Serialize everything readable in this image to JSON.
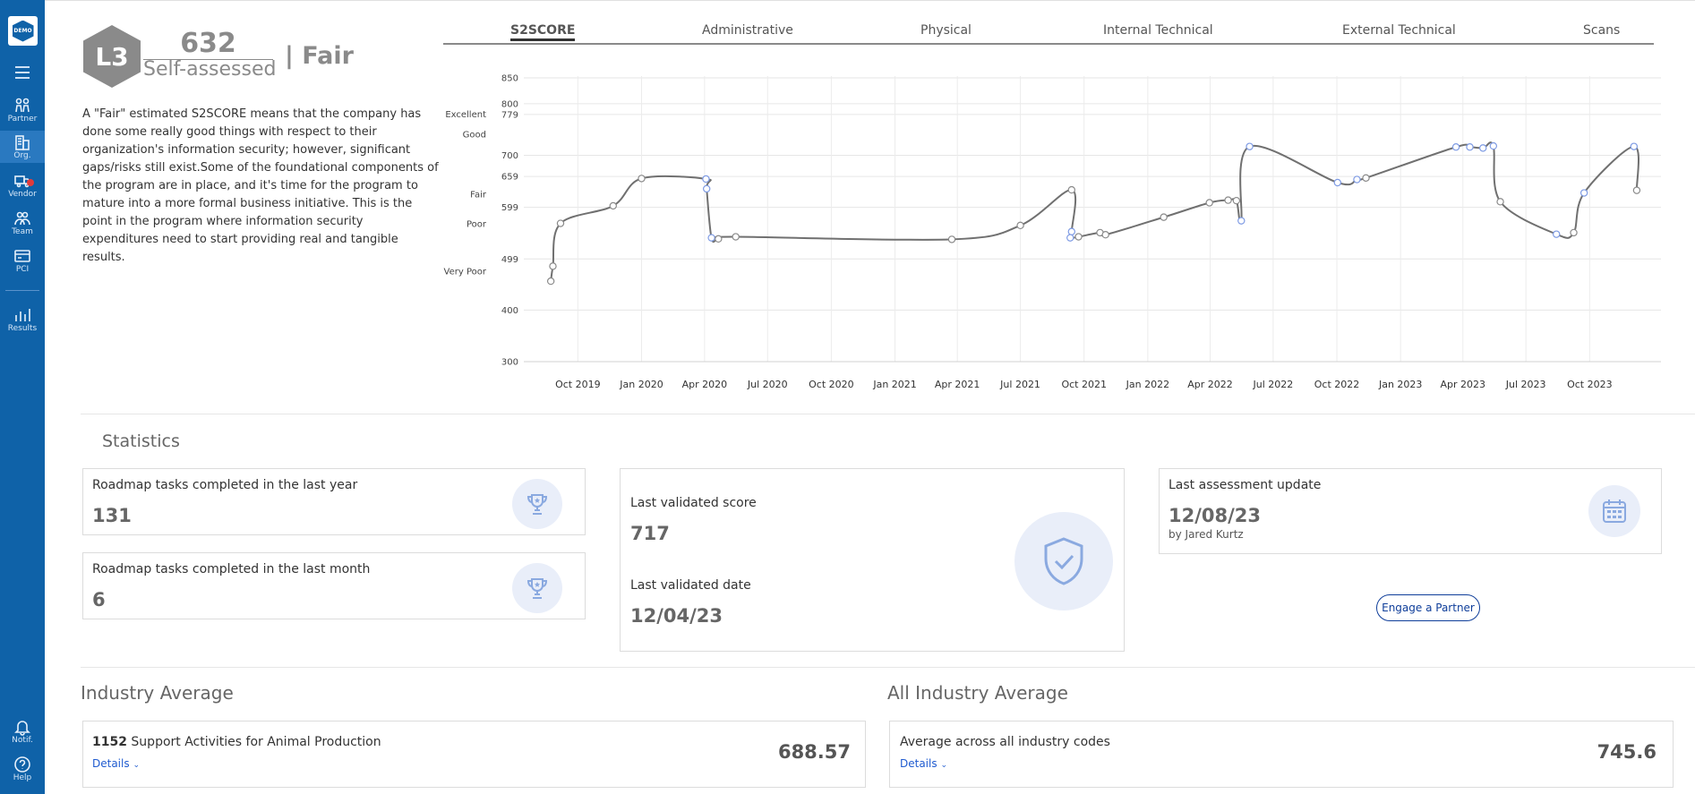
{
  "sidebar": {
    "logo": "DEMO",
    "items": [
      {
        "label": "Partner",
        "icon": "partner-icon"
      },
      {
        "label": "Org.",
        "icon": "building-icon"
      },
      {
        "label": "Vendor",
        "icon": "truck-icon"
      },
      {
        "label": "Team",
        "icon": "team-icon"
      },
      {
        "label": "PCI",
        "icon": "card-icon"
      },
      {
        "label": "Results",
        "icon": "bar-chart-icon"
      },
      {
        "label": "Notif.",
        "icon": "bell-icon"
      },
      {
        "label": "Help",
        "icon": "help-icon"
      }
    ]
  },
  "score": {
    "level": "L3",
    "value": "632",
    "type": "Self-assessed",
    "rating": "| Fair",
    "description": "A \"Fair\" estimated S2SCORE means that the company has done some really good things with respect to their organization's information security; however, significant gaps/risks still exist.Some of the foundational components of the program are in place, and it's time for the program to mature into a more formal business initiative. This is the point in the program where information security expenditures need to start providing real and tangible results."
  },
  "tabs": [
    "S2SCORE",
    "Administrative",
    "Physical",
    "Internal Technical",
    "External Technical",
    "Scans"
  ],
  "chart_data": {
    "type": "line",
    "x_ticks": [
      "Oct 2019",
      "Jan 2020",
      "Apr 2020",
      "Jul 2020",
      "Oct 2020",
      "Jan 2021",
      "Apr 2021",
      "Jul 2021",
      "Oct 2021",
      "Jan 2022",
      "Apr 2022",
      "Jul 2022",
      "Oct 2022",
      "Jan 2023",
      "Apr 2023",
      "Jul 2023",
      "Oct 2023"
    ],
    "y_ticks": [
      300,
      400,
      499,
      599,
      659,
      700,
      779,
      800,
      850
    ],
    "y_bands": [
      "Very Poor",
      "Poor",
      "Fair",
      "Good",
      "Excellent"
    ],
    "ylim": [
      300,
      850
    ],
    "grid": true,
    "series": [
      {
        "points": [
          {
            "x": "2019-08-23",
            "y": 456
          },
          {
            "x": "2019-08-26",
            "y": 485
          },
          {
            "x": "2019-09-06",
            "y": 568
          },
          {
            "x": "2019-11-21",
            "y": 602
          },
          {
            "x": "2020-01-01",
            "y": 655
          },
          {
            "x": "2020-04-03",
            "y": 654
          },
          {
            "x": "2020-04-04",
            "y": 635
          },
          {
            "x": "2020-04-11",
            "y": 540
          },
          {
            "x": "2020-04-21",
            "y": 538
          },
          {
            "x": "2020-05-16",
            "y": 542
          },
          {
            "x": "2021-03-24",
            "y": 537
          },
          {
            "x": "2021-07-01",
            "y": 564
          },
          {
            "x": "2021-09-13",
            "y": 633
          },
          {
            "x": "2021-09-13",
            "y": 552
          },
          {
            "x": "2021-09-11",
            "y": 540
          },
          {
            "x": "2021-09-23",
            "y": 542
          },
          {
            "x": "2021-10-24",
            "y": 550
          },
          {
            "x": "2021-11-01",
            "y": 546
          },
          {
            "x": "2022-01-24",
            "y": 580
          },
          {
            "x": "2022-03-31",
            "y": 608
          },
          {
            "x": "2022-04-27",
            "y": 613
          },
          {
            "x": "2022-05-09",
            "y": 612
          },
          {
            "x": "2022-05-16",
            "y": 573
          },
          {
            "x": "2022-05-28",
            "y": 717
          },
          {
            "x": "2022-10-02",
            "y": 647
          },
          {
            "x": "2022-10-30",
            "y": 653
          },
          {
            "x": "2022-11-12",
            "y": 656
          },
          {
            "x": "2023-03-22",
            "y": 716
          },
          {
            "x": "2023-04-11",
            "y": 716
          },
          {
            "x": "2023-04-30",
            "y": 714
          },
          {
            "x": "2023-05-15",
            "y": 718
          },
          {
            "x": "2023-05-25",
            "y": 610
          },
          {
            "x": "2023-08-14",
            "y": 547
          },
          {
            "x": "2023-09-08",
            "y": 550
          },
          {
            "x": "2023-09-23",
            "y": 627
          },
          {
            "x": "2023-12-04",
            "y": 717
          },
          {
            "x": "2023-12-08",
            "y": 632
          }
        ]
      }
    ]
  },
  "statistics": {
    "title": "Statistics",
    "roadmap_year": {
      "label": "Roadmap tasks completed in the last year",
      "value": "131"
    },
    "roadmap_month": {
      "label": "Roadmap tasks completed in the last month",
      "value": "6"
    },
    "validated_score": {
      "label": "Last validated score",
      "value": "717"
    },
    "validated_date": {
      "label": "Last validated date",
      "value": "12/04/23"
    },
    "assessment": {
      "label": "Last assessment update",
      "value": "12/08/23",
      "by": "by Jared Kurtz"
    },
    "engage_button": "Engage a Partner"
  },
  "industry": {
    "title": "Industry Average",
    "code": "1152",
    "name": "Support Activities for Animal Production",
    "details": "Details",
    "value": "688.57"
  },
  "all_industry": {
    "title": "All Industry Average",
    "label": "Average across all industry codes",
    "details": "Details",
    "value": "745.6"
  }
}
